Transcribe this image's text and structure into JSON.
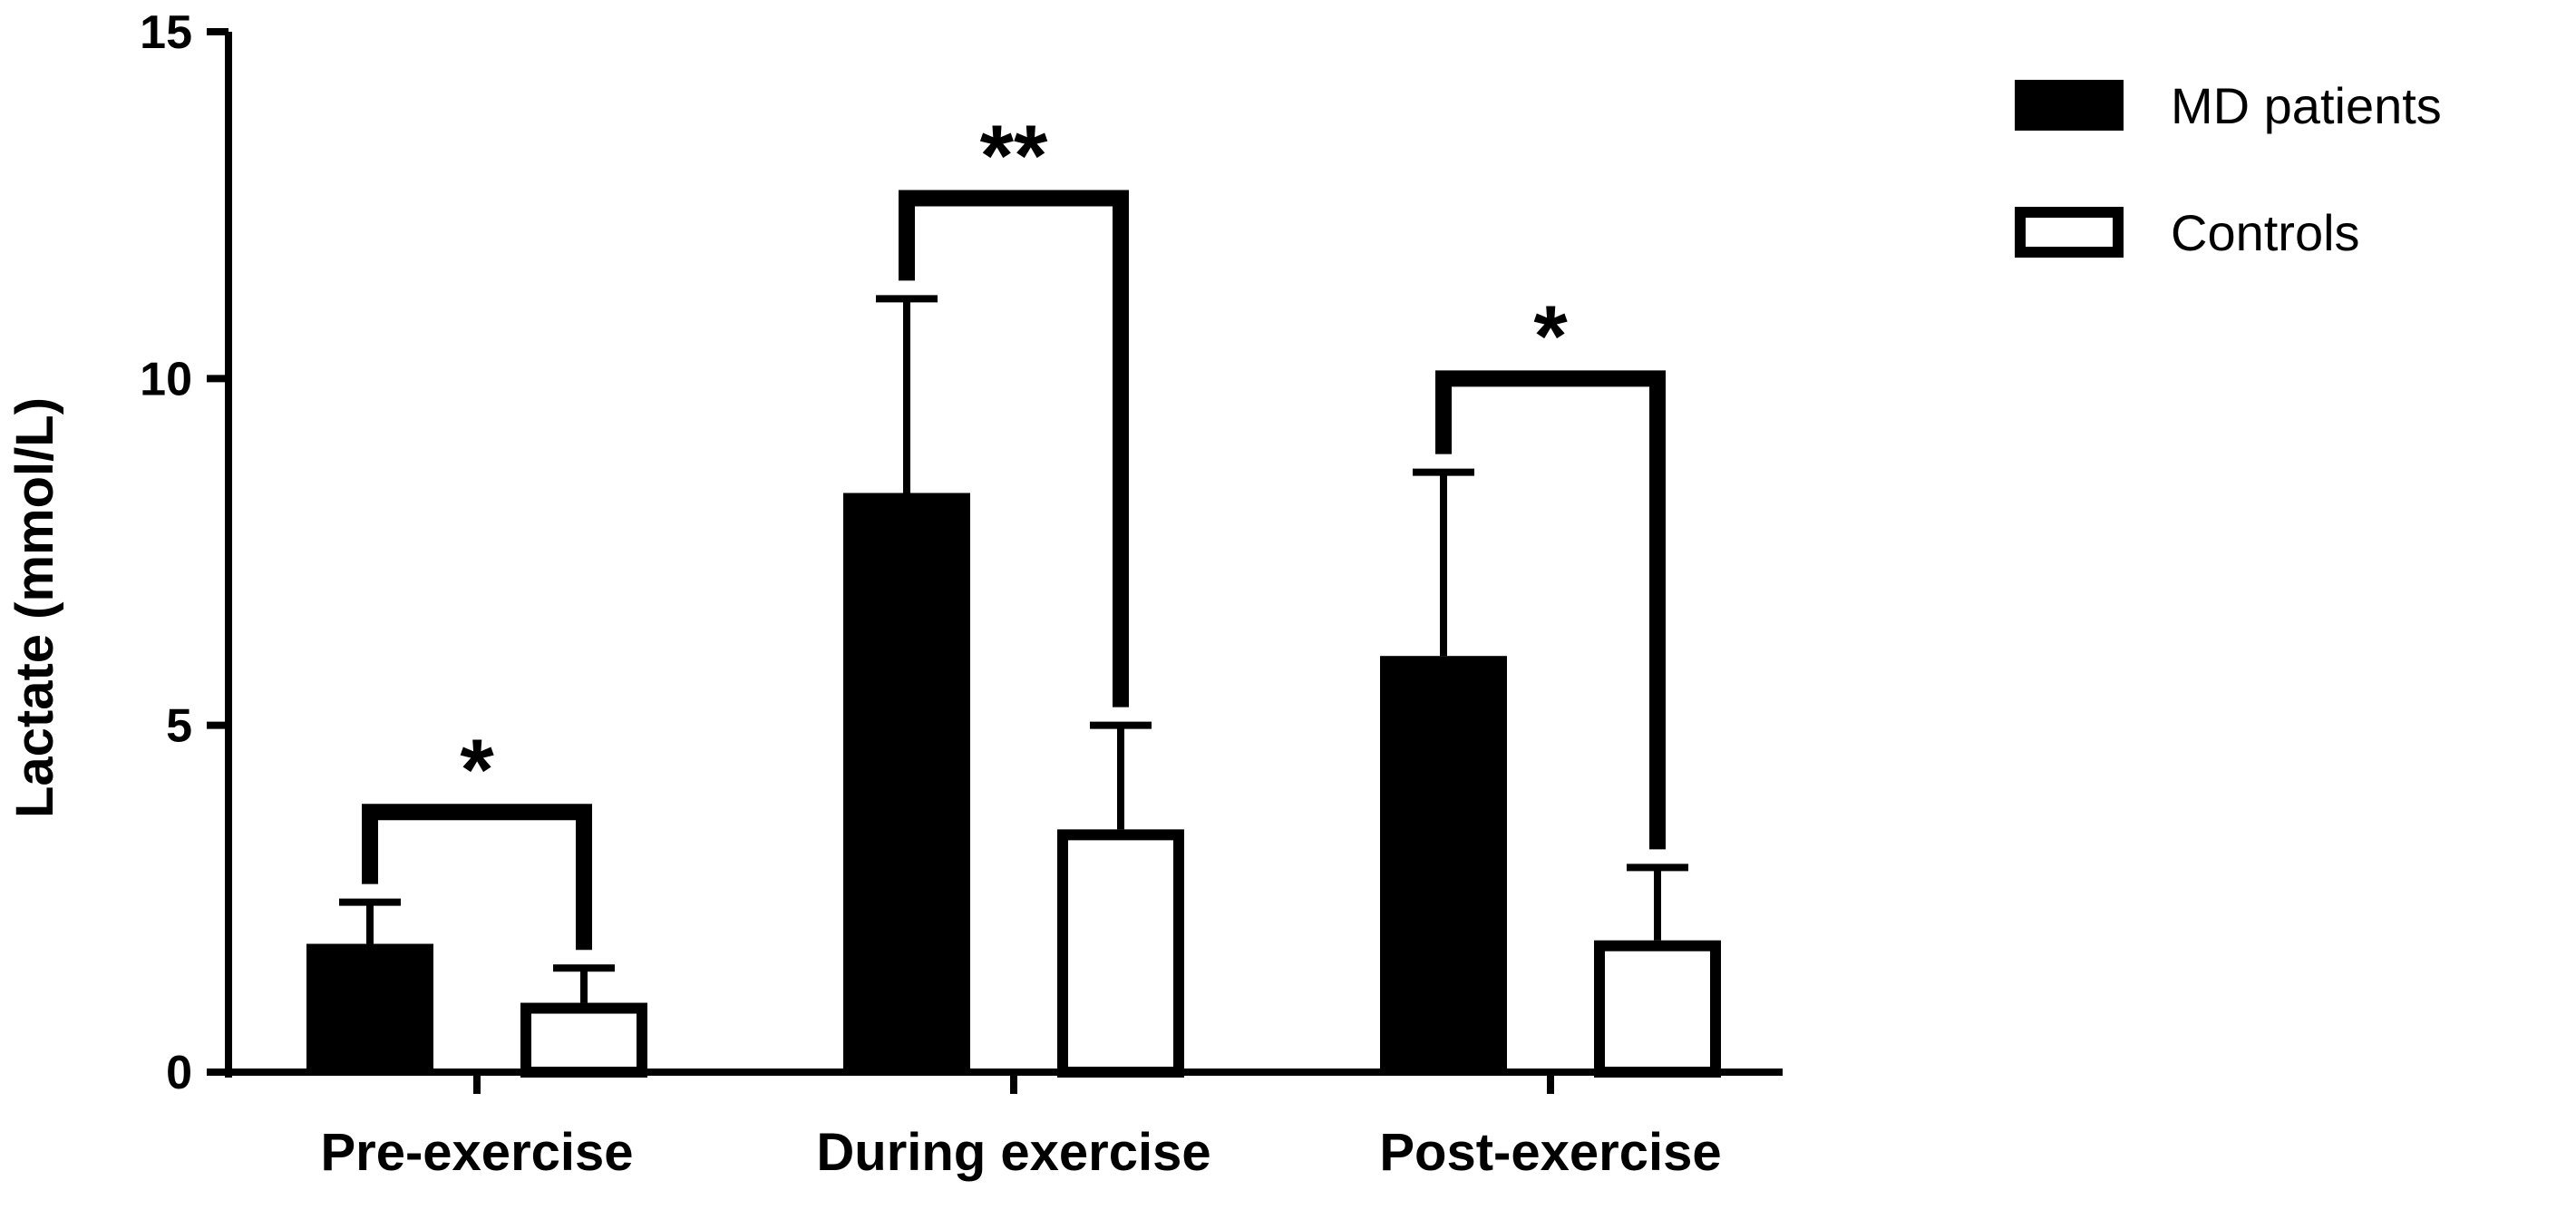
{
  "chart_data": {
    "type": "bar",
    "title": "",
    "xlabel": "",
    "ylabel": "Lactate (mmol/L)",
    "ylim": [
      0,
      15
    ],
    "yticks": [
      0,
      5,
      10,
      15
    ],
    "grid": false,
    "legend_position": "top-right",
    "categories": [
      "Pre-exercise",
      "During exercise",
      "Post-exercise"
    ],
    "series": [
      {
        "name": "MD patients",
        "fill": "#000000",
        "values": [
          1.85,
          8.35,
          6.0
        ],
        "error_upper": [
          2.45,
          11.15,
          8.65
        ]
      },
      {
        "name": "Controls",
        "fill": "#ffffff",
        "values": [
          1.0,
          3.5,
          1.9
        ],
        "error_upper": [
          1.5,
          5.0,
          2.95
        ]
      }
    ],
    "significance": [
      {
        "category": "Pre-exercise",
        "label": "*",
        "bracket_y": 3.75
      },
      {
        "category": "During exercise",
        "label": "**",
        "bracket_y": 12.6
      },
      {
        "category": "Post-exercise",
        "label": "*",
        "bracket_y": 10.0
      }
    ]
  }
}
